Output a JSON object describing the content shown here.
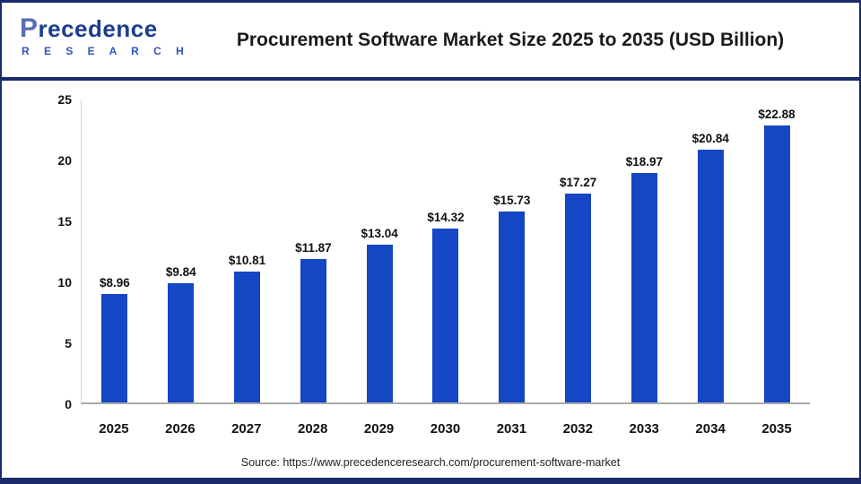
{
  "logo": {
    "line1_initial": "P",
    "line1_rest": "recedence",
    "line2": "R E S E A R C H"
  },
  "header": {
    "title": "Procurement Software Market Size 2025 to 2035 (USD Billion)"
  },
  "chart_data": {
    "type": "bar",
    "title": "Procurement Software Market Size 2025 to 2035 (USD Billion)",
    "categories": [
      "2025",
      "2026",
      "2027",
      "2028",
      "2029",
      "2030",
      "2031",
      "2032",
      "2033",
      "2034",
      "2035"
    ],
    "values": [
      8.96,
      9.84,
      10.81,
      11.87,
      13.04,
      14.32,
      15.73,
      17.27,
      18.97,
      20.84,
      22.88
    ],
    "value_labels": [
      "$8.96",
      "$9.84",
      "$10.81",
      "$11.87",
      "$13.04",
      "$14.32",
      "$15.73",
      "$17.27",
      "$18.97",
      "$20.84",
      "$22.88"
    ],
    "xlabel": "",
    "ylabel": "",
    "ylim": [
      0,
      25
    ],
    "yticks": [
      0,
      5,
      10,
      15,
      20,
      25
    ],
    "grid": false,
    "legend_position": "none",
    "bar_color": "#1546c4",
    "accent_navy": "#1b2a6a"
  },
  "footer": {
    "source": "Source: https://www.precedenceresearch.com/procurement-software-market"
  }
}
